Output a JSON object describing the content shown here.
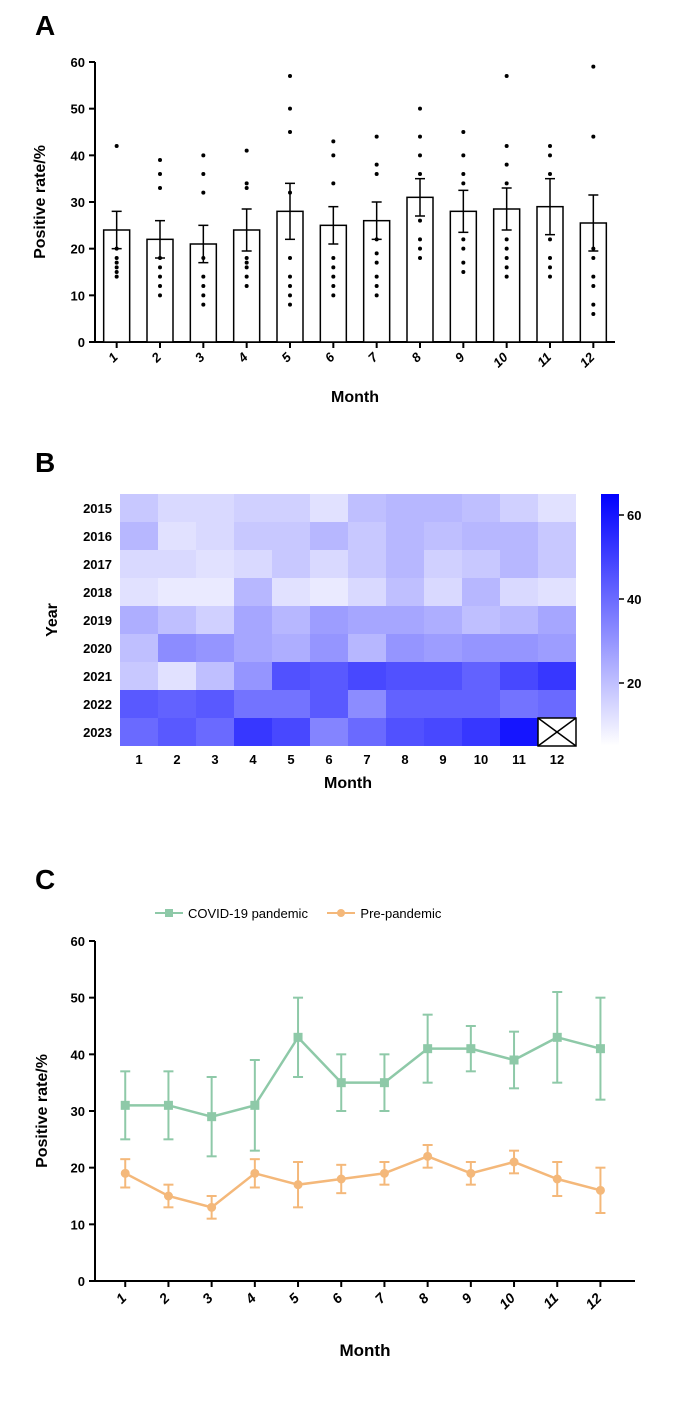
{
  "panelA": {
    "label": "A",
    "type": "bar",
    "ylabel": "Positive rate/%",
    "xlabel": "Month",
    "categories": [
      "1",
      "2",
      "3",
      "4",
      "5",
      "6",
      "7",
      "8",
      "9",
      "10",
      "11",
      "12"
    ],
    "bar_values": [
      24,
      22,
      21,
      24,
      28,
      25,
      26,
      31,
      28,
      28.5,
      29,
      25.5
    ],
    "err_low": [
      4,
      4,
      4,
      4.5,
      6,
      4,
      4,
      4,
      4.5,
      4.5,
      6,
      6
    ],
    "err_high": [
      4,
      4,
      4,
      4.5,
      6,
      4,
      4,
      4,
      4.5,
      4.5,
      6,
      6
    ],
    "scatter": [
      [
        42,
        20,
        18,
        17,
        16,
        15,
        14
      ],
      [
        39,
        36,
        33,
        18,
        16,
        14,
        12,
        10
      ],
      [
        40,
        36,
        32,
        18,
        14,
        12,
        10,
        8
      ],
      [
        41,
        34,
        33,
        18,
        17,
        16,
        14,
        12
      ],
      [
        57,
        50,
        45,
        32,
        18,
        14,
        12,
        10,
        8
      ],
      [
        43,
        40,
        34,
        18,
        16,
        14,
        12,
        10
      ],
      [
        44,
        38,
        36,
        22,
        19,
        17,
        14,
        12,
        10
      ],
      [
        50,
        44,
        40,
        36,
        26,
        22,
        20,
        18
      ],
      [
        45,
        40,
        36,
        34,
        22,
        20,
        17,
        15
      ],
      [
        57,
        42,
        38,
        34,
        22,
        20,
        18,
        16,
        14
      ],
      [
        42,
        40,
        36,
        22,
        18,
        16,
        14
      ],
      [
        59,
        44,
        20,
        18,
        14,
        12,
        8,
        6
      ]
    ],
    "ylim": [
      0,
      60
    ],
    "ytick_step": 10,
    "bar_fill": "#ffffff",
    "bar_stroke": "#000000",
    "scatter_color": "#000000"
  },
  "panelB": {
    "label": "B",
    "type": "heatmap",
    "ylabel": "Year",
    "xlabel": "Month",
    "years": [
      "2015",
      "2016",
      "2017",
      "2018",
      "2019",
      "2020",
      "2021",
      "2022",
      "2023"
    ],
    "months": [
      "1",
      "2",
      "3",
      "4",
      "5",
      "6",
      "7",
      "8",
      "9",
      "10",
      "11",
      "12"
    ],
    "values": [
      [
        18,
        14,
        14,
        16,
        16,
        12,
        20,
        22,
        22,
        20,
        16,
        12
      ],
      [
        22,
        12,
        14,
        18,
        18,
        22,
        18,
        22,
        20,
        22,
        22,
        18
      ],
      [
        14,
        14,
        12,
        14,
        18,
        14,
        18,
        22,
        16,
        18,
        22,
        18
      ],
      [
        12,
        10,
        10,
        22,
        12,
        10,
        14,
        20,
        14,
        22,
        14,
        12
      ],
      [
        24,
        20,
        16,
        26,
        22,
        28,
        26,
        26,
        24,
        20,
        22,
        26
      ],
      [
        20,
        32,
        30,
        26,
        24,
        30,
        22,
        30,
        28,
        30,
        30,
        28
      ],
      [
        18,
        12,
        20,
        30,
        46,
        44,
        48,
        46,
        46,
        42,
        48,
        52
      ],
      [
        44,
        42,
        44,
        38,
        38,
        44,
        32,
        42,
        42,
        42,
        38,
        40
      ],
      [
        40,
        44,
        40,
        52,
        48,
        34,
        40,
        46,
        48,
        52,
        60,
        null
      ]
    ],
    "color_min": "#ffffff",
    "color_max": "#0000ff",
    "scale_min": 5,
    "scale_max": 65,
    "scale_ticks": [
      20,
      40,
      60
    ]
  },
  "panelC": {
    "label": "C",
    "type": "line",
    "ylabel": "Positive rate/%",
    "xlabel": "Month",
    "categories": [
      "1",
      "2",
      "3",
      "4",
      "5",
      "6",
      "7",
      "8",
      "9",
      "10",
      "11",
      "12"
    ],
    "series": [
      {
        "name": "COVID-19 pandemic",
        "color": "#8ec9a8",
        "marker": "square",
        "values": [
          31,
          31,
          29,
          31,
          43,
          35,
          35,
          41,
          41,
          39,
          43,
          41
        ],
        "err": [
          6,
          6,
          7,
          8,
          7,
          5,
          5,
          6,
          4,
          5,
          8,
          9
        ]
      },
      {
        "name": "Pre-pandemic",
        "color": "#f4b87a",
        "marker": "circle",
        "values": [
          19,
          15,
          13,
          19,
          17,
          18,
          19,
          22,
          19,
          21,
          18,
          16
        ],
        "err": [
          2.5,
          2,
          2,
          2.5,
          4,
          2.5,
          2,
          2,
          2,
          2,
          3,
          4
        ]
      }
    ],
    "ylim": [
      0,
      60
    ],
    "ytick_step": 10
  }
}
